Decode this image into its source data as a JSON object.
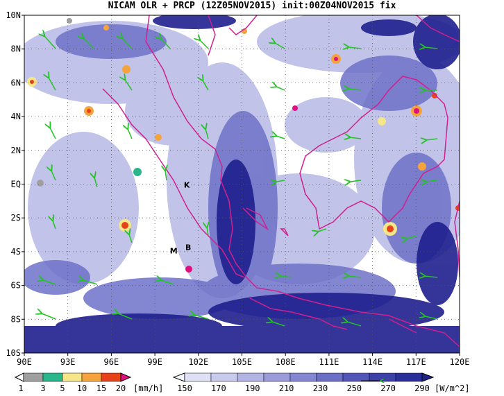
{
  "title": "NICAM OLR + PRCP (12Z05NOV2015) init:00Z04NOV2015 fix",
  "colors": {
    "olr_deep": "#1f1f8f",
    "olr_mid": "#6e71c8",
    "olr_light": "#b7b9e6",
    "coast": "#d0208f",
    "wind": "#22c322",
    "grid": "#555555"
  },
  "map": {
    "lon_range": [
      90,
      120
    ],
    "lat_range": [
      -10,
      10
    ],
    "x_ticks": [
      "90E",
      "93E",
      "96E",
      "99E",
      "102E",
      "105E",
      "108E",
      "111E",
      "114E",
      "117E",
      "120E"
    ],
    "y_ticks": [
      "10N",
      "8N",
      "6N",
      "4N",
      "2N",
      "EQ",
      "2S",
      "4S",
      "6S",
      "8S",
      "10S"
    ],
    "sites": [
      {
        "label": "K",
        "lon": 101.2,
        "lat": -0.2
      },
      {
        "label": "M",
        "lon": 100.3,
        "lat": -4.1
      },
      {
        "label": "B",
        "lon": 101.3,
        "lat": -3.9
      }
    ]
  },
  "prcp_legend": {
    "labels": [
      "1",
      "3",
      "5",
      "10",
      "15",
      "20"
    ],
    "unit": "[mm/h]",
    "colors": [
      "#a0a0a0",
      "#2ab58a",
      "#f5e68a",
      "#f5a33c",
      "#e8421a",
      "#e0117f"
    ]
  },
  "olr_legend": {
    "labels": [
      "150",
      "170",
      "190",
      "210",
      "230",
      "250",
      "270",
      "290"
    ],
    "unit": "[W/m^2]",
    "colors": [
      "#f4f4fb",
      "#dfe0f4",
      "#c9cbec",
      "#b2b4e3",
      "#9b9dda",
      "#8386d0",
      "#6b6ec5",
      "#5356b8",
      "#3c40a8",
      "#2a2e98",
      "#1f2288"
    ]
  }
}
